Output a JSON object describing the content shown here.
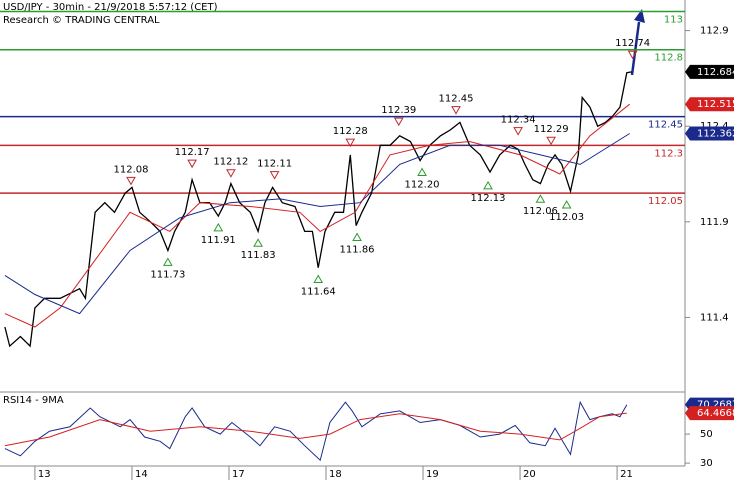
{
  "header": {
    "title": "USD/JPY - 30min - 21/9/2018 5:57:12 (CET)",
    "source": "Research © TRADING CENTRAL"
  },
  "chart_data": [
    {
      "type": "line",
      "xlim": [
        -0.36,
        6.7
      ],
      "ylim": [
        111.01,
        113.06
      ],
      "yticks": [
        112.9,
        112.4,
        111.9,
        111.4
      ],
      "levels": [
        {
          "value": 113,
          "color": "#2e9b2e"
        },
        {
          "value": 112.8,
          "color": "#2e9b2e"
        },
        {
          "value": 112.45,
          "color": "#1a2a8c"
        },
        {
          "value": 112.3,
          "color": "#c0282a"
        },
        {
          "value": 112.05,
          "color": "#c0282a"
        }
      ],
      "series": [
        {
          "color": "#000000",
          "x": [
            -0.31,
            -0.26,
            -0.15,
            -0.05,
            0,
            0.1,
            0.26,
            0.46,
            0.52,
            0.62,
            0.72,
            0.82,
            0.93,
            1.0,
            1.08,
            1.19,
            1.29,
            1.37,
            1.44,
            1.55,
            1.62,
            1.7,
            1.8,
            1.89,
            1.96,
            2.02,
            2.11,
            2.22,
            2.3,
            2.37,
            2.45,
            2.55,
            2.68,
            2.78,
            2.86,
            2.92,
            2.99,
            3.09,
            3.18,
            3.25,
            3.31,
            3.37,
            3.47,
            3.56,
            3.66,
            3.76,
            3.87,
            3.97,
            4.07,
            4.18,
            4.28,
            4.38,
            4.48,
            4.59,
            4.69,
            4.79,
            4.9,
            4.98,
            5.05,
            5.13,
            5.21,
            5.29,
            5.36,
            5.43,
            5.52,
            5.6,
            5.64,
            5.72,
            5.8,
            5.88,
            5.95,
            6.03,
            6.1,
            6.15
          ],
          "values": [
            111.35,
            111.25,
            111.3,
            111.25,
            111.45,
            111.5,
            111.5,
            111.55,
            111.5,
            111.95,
            112.0,
            111.95,
            112.05,
            112.08,
            111.95,
            111.9,
            111.85,
            111.75,
            111.85,
            111.95,
            112.12,
            112.0,
            112.0,
            111.93,
            112.0,
            112.1,
            112.0,
            111.95,
            111.85,
            112.0,
            112.08,
            112.0,
            111.98,
            111.85,
            111.85,
            111.66,
            111.85,
            111.95,
            111.95,
            112.25,
            111.88,
            111.95,
            112.05,
            112.3,
            112.3,
            112.35,
            112.32,
            112.22,
            112.3,
            112.35,
            112.38,
            112.42,
            112.3,
            112.25,
            112.16,
            112.25,
            112.3,
            112.28,
            112.2,
            112.12,
            112.1,
            112.2,
            112.25,
            112.2,
            112.06,
            112.25,
            112.55,
            112.5,
            112.4,
            112.42,
            112.45,
            112.5,
            112.68,
            112.684
          ]
        },
        {
          "color": "#d42020",
          "x": [
            -0.31,
            0,
            0.26,
            0.62,
            0.98,
            1.39,
            1.7,
            2.22,
            2.73,
            2.94,
            3.3,
            3.66,
            4.07,
            4.48,
            5.0,
            5.41,
            5.72,
            6.13
          ],
          "values": [
            111.42,
            111.35,
            111.45,
            111.7,
            111.95,
            111.85,
            112.0,
            111.98,
            111.95,
            111.85,
            111.95,
            112.25,
            112.3,
            112.32,
            112.25,
            112.15,
            112.35,
            112.515
          ]
        },
        {
          "color": "#1a2a8c",
          "x": [
            -0.31,
            0,
            0.46,
            0.98,
            1.49,
            2.01,
            2.53,
            2.94,
            3.35,
            3.76,
            4.28,
            4.79,
            5.21,
            5.62,
            6.13
          ],
          "values": [
            111.62,
            111.52,
            111.42,
            111.75,
            111.92,
            112.0,
            112.02,
            111.98,
            112.0,
            112.2,
            112.3,
            112.3,
            112.25,
            112.2,
            112.362
          ]
        }
      ],
      "peaks": [
        {
          "x": 0.99,
          "value": 112.08
        },
        {
          "x": 1.62,
          "value": 112.17
        },
        {
          "x": 2.02,
          "value": 112.12
        },
        {
          "x": 2.47,
          "value": 112.11
        },
        {
          "x": 3.25,
          "value": 112.28
        },
        {
          "x": 3.75,
          "value": 112.39
        },
        {
          "x": 4.34,
          "value": 112.45
        },
        {
          "x": 4.98,
          "value": 112.34
        },
        {
          "x": 5.32,
          "value": 112.29
        },
        {
          "x": 6.16,
          "value": 112.74
        }
      ],
      "troughs": [
        {
          "x": 1.37,
          "value": 111.73
        },
        {
          "x": 1.89,
          "value": 111.91
        },
        {
          "x": 2.3,
          "value": 111.83
        },
        {
          "x": 2.92,
          "value": 111.64
        },
        {
          "x": 3.32,
          "value": 111.86
        },
        {
          "x": 3.99,
          "value": 112.2,
          "label": "112.20"
        },
        {
          "x": 4.67,
          "value": 112.13
        },
        {
          "x": 5.21,
          "value": 112.06
        },
        {
          "x": 5.48,
          "value": 112.03
        }
      ]
    },
    {
      "type": "line",
      "title": "RSI14 - 9MA",
      "xlim": [
        -0.36,
        6.7
      ],
      "ylim": [
        28,
        79
      ],
      "yticks": [
        70,
        50,
        30
      ],
      "xticks": [
        {
          "value": 0,
          "label": "13"
        },
        {
          "value": 1,
          "label": "14"
        },
        {
          "value": 2,
          "label": "17"
        },
        {
          "value": 3,
          "label": "18"
        },
        {
          "value": 4,
          "label": "19"
        },
        {
          "value": 5,
          "label": "20"
        },
        {
          "value": 6,
          "label": "21"
        }
      ],
      "series": [
        {
          "color": "#1a2a8c",
          "x": [
            -0.31,
            -0.15,
            0,
            0.15,
            0.36,
            0.57,
            0.67,
            0.88,
            0.98,
            1.13,
            1.29,
            1.39,
            1.55,
            1.62,
            1.75,
            1.91,
            2.03,
            2.22,
            2.32,
            2.47,
            2.63,
            2.78,
            2.94,
            3.04,
            3.2,
            3.27,
            3.37,
            3.56,
            3.76,
            3.97,
            4.18,
            4.38,
            4.59,
            4.79,
            4.95,
            5.1,
            5.26,
            5.36,
            5.52,
            5.62,
            5.72,
            5.82,
            5.95,
            6.03,
            6.1
          ],
          "values": [
            40,
            35,
            45,
            52,
            55,
            68,
            62,
            55,
            60,
            48,
            45,
            40,
            62,
            68,
            55,
            50,
            58,
            48,
            42,
            55,
            52,
            42,
            32,
            58,
            72,
            66,
            55,
            64,
            66,
            58,
            60,
            56,
            48,
            50,
            56,
            44,
            42,
            54,
            36,
            72,
            60,
            62,
            64,
            62,
            70.2687
          ]
        },
        {
          "color": "#d42020",
          "x": [
            -0.31,
            0.15,
            0.67,
            1.19,
            1.7,
            2.22,
            2.73,
            3.04,
            3.35,
            3.76,
            4.18,
            4.59,
            5.0,
            5.41,
            5.62,
            5.82,
            6.1
          ],
          "values": [
            42,
            48,
            60,
            52,
            55,
            52,
            47,
            50,
            60,
            64,
            60,
            52,
            50,
            46,
            54,
            62,
            64.4668
          ]
        }
      ]
    }
  ]
}
